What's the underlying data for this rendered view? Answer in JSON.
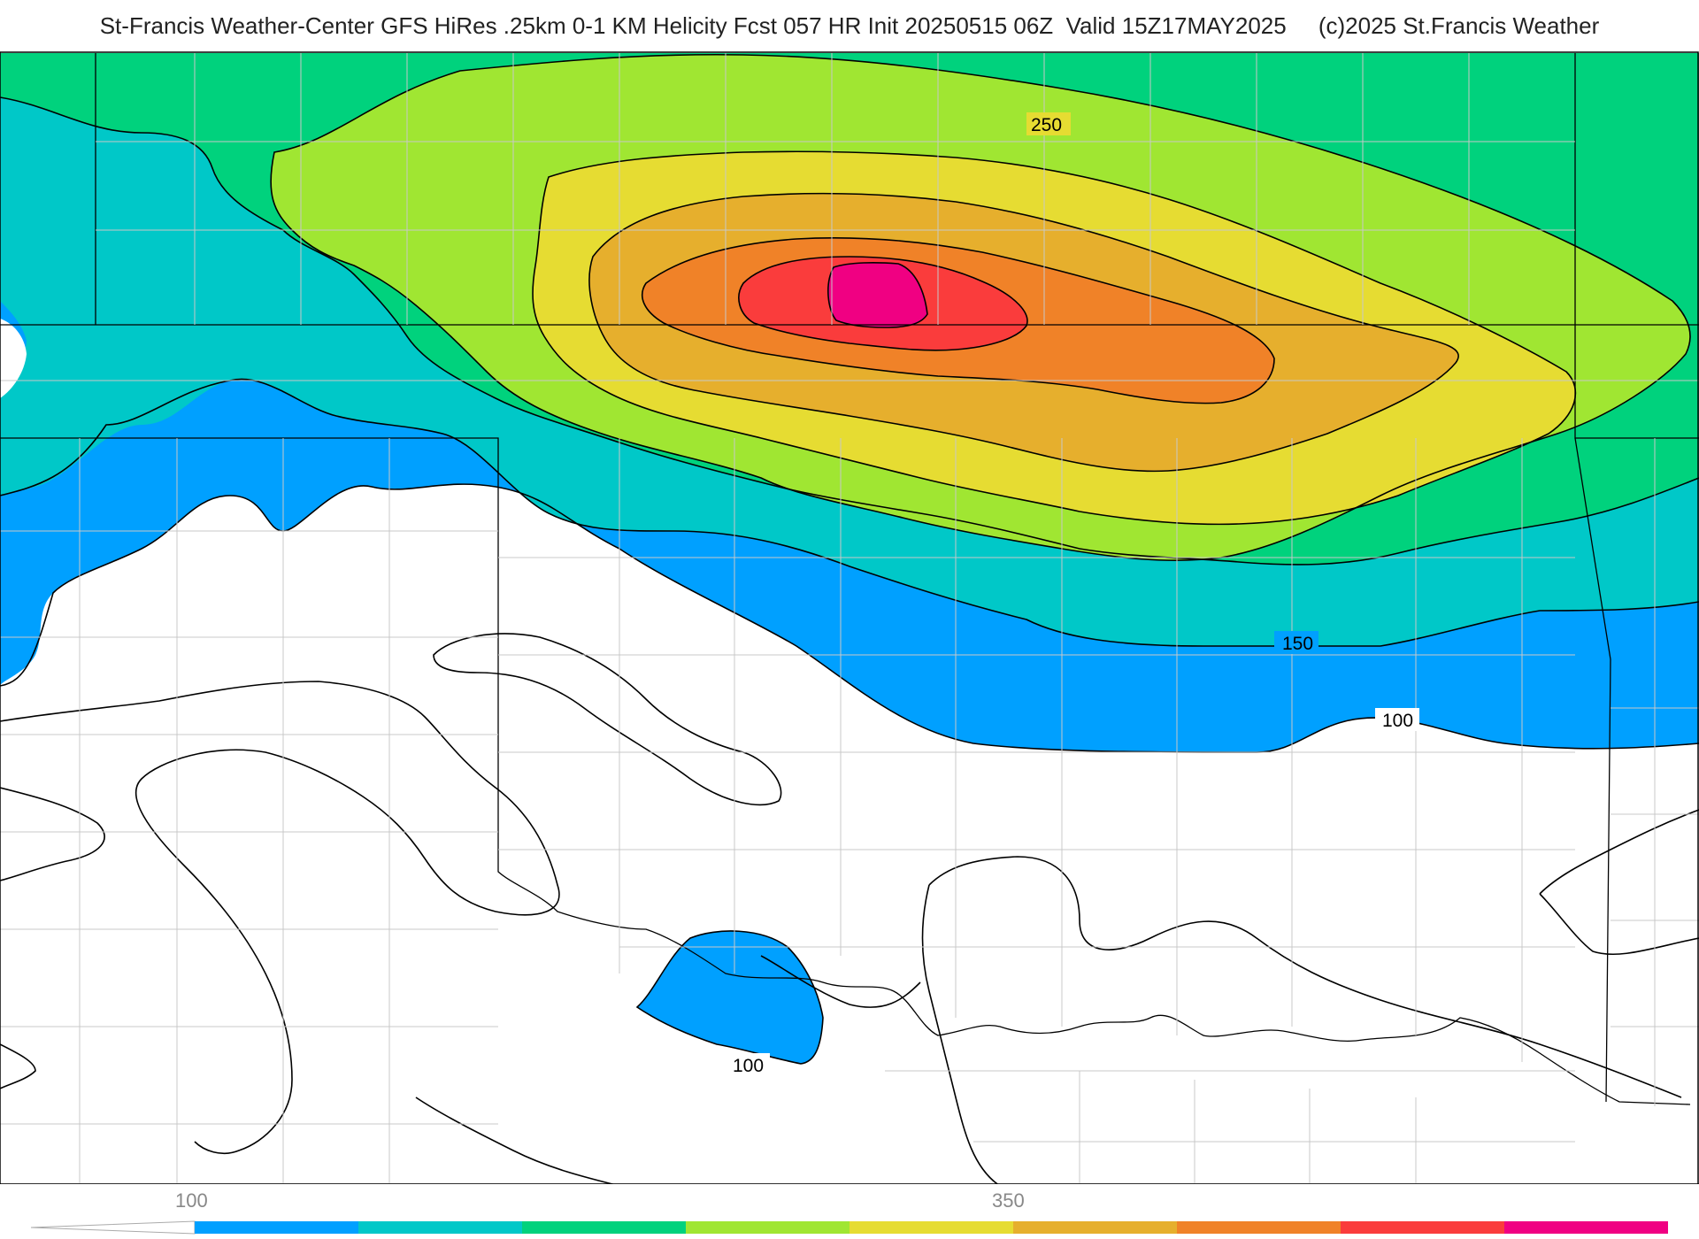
{
  "title": "St-Francis Weather-Center GFS HiRes .25km 0-1 KM Helicity Fcst 057 HR Init 20250515 06Z  Valid 15Z17MAY2025     (c)2025 St.Francis Weather",
  "colors": {
    "background": "#ffffff",
    "band_100": "#00a0ff",
    "band_150": "#00c8c8",
    "band_200": "#00d27d",
    "band_250": "#a0e632",
    "band_300": "#e6dc32",
    "band_350": "#e6af2d",
    "band_400": "#f08228",
    "band_450": "#fa3c3c",
    "band_500": "#f00082"
  },
  "contour_labels": [
    "250",
    "150",
    "100",
    "100"
  ],
  "colorbar": {
    "tick_labels": [
      "100",
      "350"
    ],
    "bands": [
      "#00a0ff",
      "#00c8c8",
      "#00d27d",
      "#a0e632",
      "#e6dc32",
      "#e6af2d",
      "#f08228",
      "#fa3c3c",
      "#f00082"
    ]
  }
}
